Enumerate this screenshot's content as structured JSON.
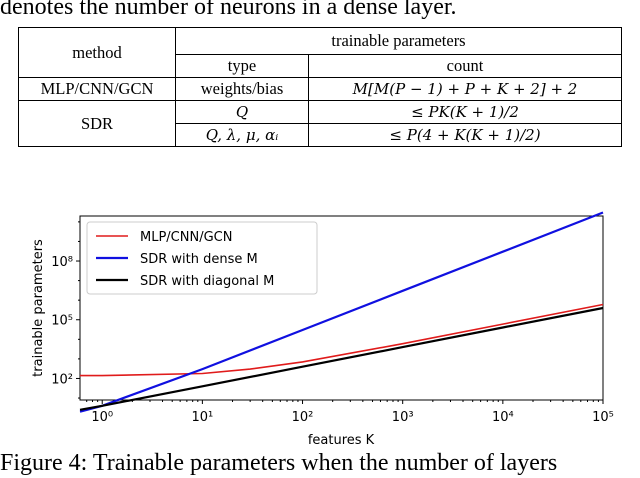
{
  "paper": {
    "top_text": "denotes the number of neurons in a dense layer.",
    "caption": "Figure 4: Trainable parameters when the number of layers"
  },
  "table": {
    "col_method": "method",
    "col_trainable": "trainable parameters",
    "col_type": "type",
    "col_count": "count",
    "rows": [
      {
        "method": "MLP/CNN/GCN",
        "type": "weights/bias",
        "count": "M[M(P − 1) + P + K + 2] + 2"
      },
      {
        "method": "SDR",
        "type": "Q",
        "count": "≤ PK(K + 1)/2"
      },
      {
        "method": "",
        "type": "Q, λ, μ, αᵢ",
        "count": "≤ P(4 + K(K + 1)/2)"
      }
    ]
  },
  "chart_data": {
    "type": "line",
    "xlabel": "features K",
    "ylabel": "trainable parameters",
    "xscale": "log",
    "yscale": "log",
    "xlim": [
      0.6,
      100000
    ],
    "x_ticks": [
      "10⁰",
      "10¹",
      "10²",
      "10³",
      "10⁴",
      "10⁵"
    ],
    "y_ticks": [
      "10²",
      "10⁵",
      "10⁸"
    ],
    "legend_position": "top-left",
    "series": [
      {
        "name": "MLP/CNN/GCN",
        "color": "#e01b1b",
        "x": [
          0.6,
          1,
          10,
          30,
          100,
          1000,
          10000,
          100000
        ],
        "y": [
          140,
          140,
          180,
          300,
          700,
          6000,
          60000,
          600000
        ]
      },
      {
        "name": "SDR with dense M",
        "color": "#1010e0",
        "x": [
          0.6,
          1,
          10,
          100,
          1000,
          10000,
          100000
        ],
        "y": [
          2,
          4,
          300,
          30000,
          3000000,
          300000000,
          30000000000
        ]
      },
      {
        "name": "SDR with diagonal M",
        "color": "#000000",
        "x": [
          0.6,
          1,
          10,
          100,
          1000,
          10000,
          100000
        ],
        "y": [
          2.5,
          4,
          40,
          400,
          4000,
          40000,
          400000
        ]
      }
    ]
  }
}
